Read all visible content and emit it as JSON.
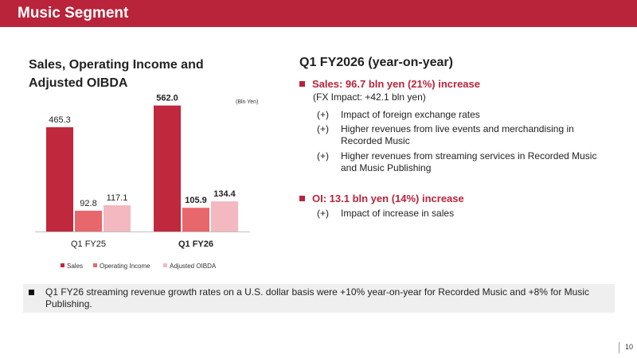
{
  "header": {
    "title": "Music Segment"
  },
  "left": {
    "title": "Sales, Operating Income and Adjusted OIBDA",
    "unit": "(Bln Yen)"
  },
  "chart_data": {
    "type": "bar",
    "categories": [
      "Q1 FY25",
      "Q1 FY26"
    ],
    "series": [
      {
        "name": "Sales",
        "values": [
          465.3,
          562.0
        ],
        "labels": [
          "465.3",
          "562.0"
        ],
        "color": "#c0283d"
      },
      {
        "name": "Operating Income",
        "values": [
          92.8,
          105.9
        ],
        "labels": [
          "92.8",
          "105.9"
        ],
        "color": "#e8676c"
      },
      {
        "name": "Adjusted OIBDA",
        "values": [
          117.1,
          134.4
        ],
        "labels": [
          "117.1",
          "134.4"
        ],
        "color": "#f3b8c0"
      }
    ],
    "bold_category_index": 1,
    "title": "Sales, Operating Income and Adjusted OIBDA",
    "ylabel": "(Bln Yen)",
    "legend": "bottom",
    "grid": false
  },
  "right": {
    "title": "Q1 FY2026 (year-on-year)",
    "sales": {
      "head": "Sales: 96.7 bln yen (21%) increase",
      "fx": "(FX Impact: +42.1 bln yen)",
      "points": [
        {
          "mark": "(+)",
          "line1": "Impact of foreign exchange rates",
          "line2": ""
        },
        {
          "mark": "(+)",
          "line1": "Higher revenues from live events and merchandising in",
          "line2": "Recorded Music"
        },
        {
          "mark": "(+)",
          "line1": "Higher revenues from streaming services in Recorded Music",
          "line2": "and Music Publishing"
        }
      ]
    },
    "oi": {
      "head": "OI: 13.1 bln yen (14%) increase",
      "points": [
        {
          "mark": "(+)",
          "line1": "Impact of increase in sales"
        }
      ]
    }
  },
  "note": "Q1 FY26 streaming revenue growth rates on a U.S. dollar basis were +10% year-on-year for Recorded Music and +8% for Music Publishing.",
  "page_number": "10"
}
